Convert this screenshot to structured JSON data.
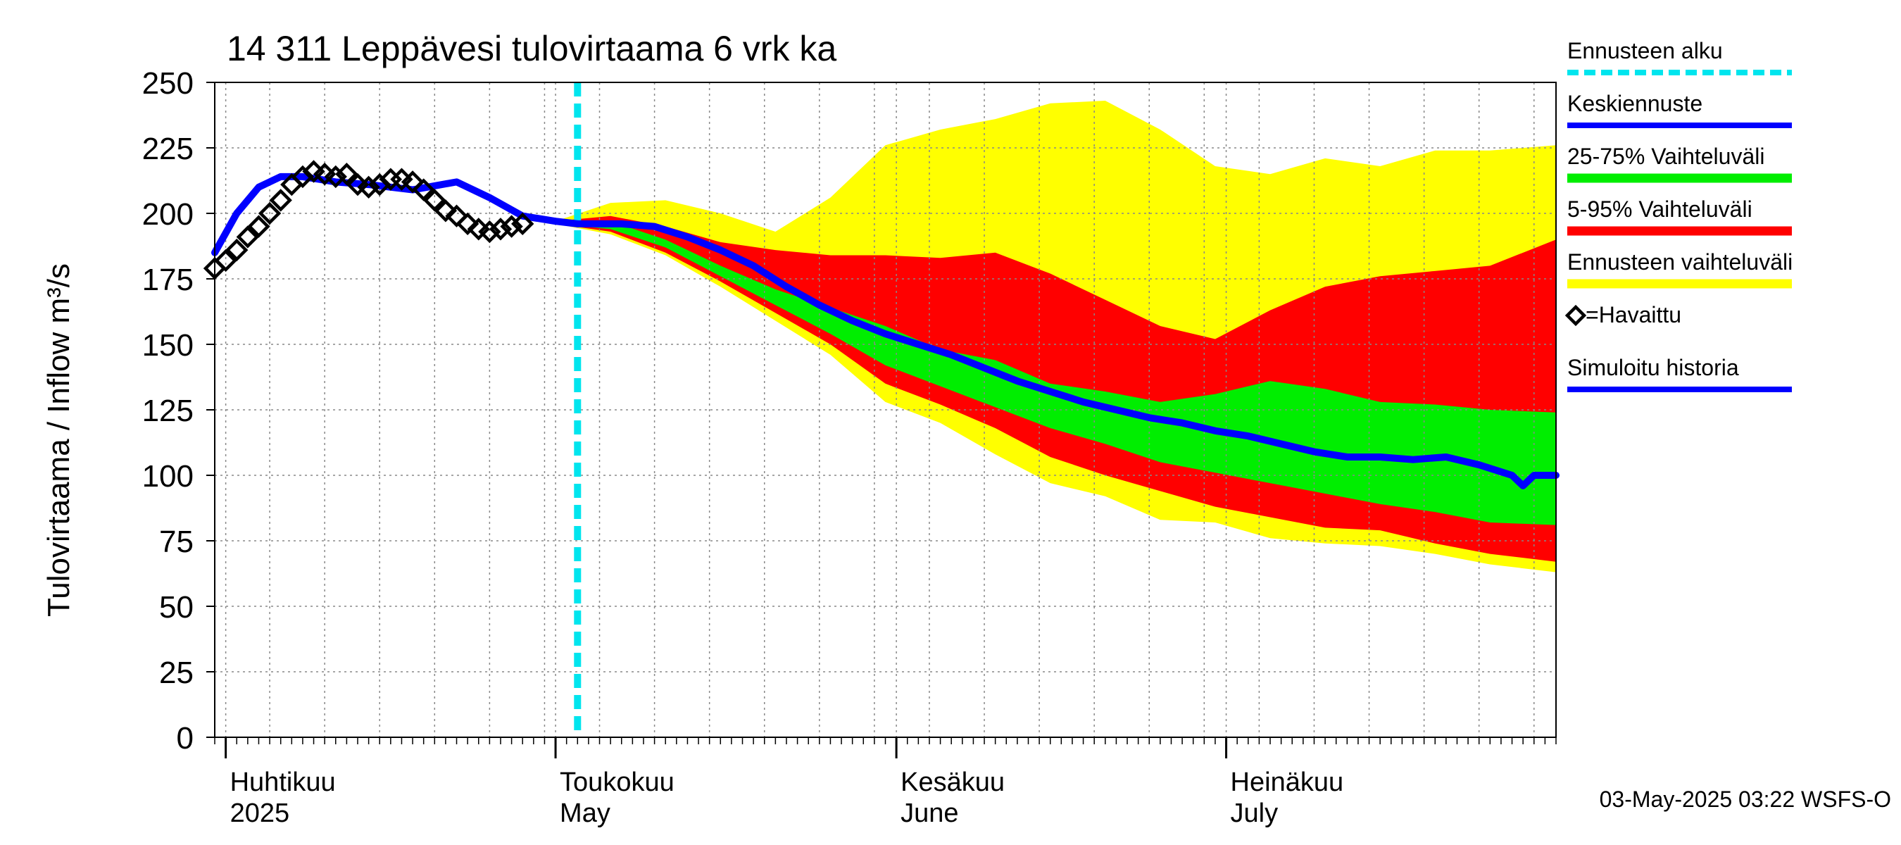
{
  "chart_data": {
    "type": "area",
    "title": "14 311 Leppävesi tulovirtaama 6 vrk ka",
    "ylabel": "Tulovirtaama / Inflow    m³/s",
    "ylim": [
      0,
      250
    ],
    "yticks": [
      0,
      25,
      50,
      75,
      100,
      125,
      150,
      175,
      200,
      225,
      250
    ],
    "x_range": [
      "2025-03-31",
      "2025-07-31"
    ],
    "grid": true,
    "legend_position": "right",
    "forecast_start": "2025-05-03",
    "month_labels": [
      {
        "date": "2025-04-01",
        "fi": "Huhtikuu",
        "en": "2025"
      },
      {
        "date": "2025-05-01",
        "fi": "Toukokuu",
        "en": "May"
      },
      {
        "date": "2025-06-01",
        "fi": "Kesäkuu",
        "en": "June"
      },
      {
        "date": "2025-07-01",
        "fi": "Heinäkuu",
        "en": "July"
      }
    ],
    "legend": [
      {
        "label": "Ennusteen alku",
        "color": "#00e5ee",
        "style": "dashed"
      },
      {
        "label": "Keskiennuste",
        "color": "#0000ff",
        "style": "line"
      },
      {
        "label": "25-75% Vaihteluväli",
        "color": "#00ee00",
        "style": "band"
      },
      {
        "label": "5-95% Vaihteluväli",
        "color": "#ff0000",
        "style": "band"
      },
      {
        "label": "Ennusteen vaihteluväli",
        "color": "#ffff00",
        "style": "band"
      },
      {
        "label": "=Havaittu",
        "color": "#000000",
        "style": "marker"
      },
      {
        "label": "Simuloitu historia",
        "color": "#0000ff",
        "style": "line"
      }
    ],
    "footer": "03-May-2025 03:22 WSFS-O",
    "band_x": [
      "2025-05-01",
      "2025-05-06",
      "2025-05-11",
      "2025-05-16",
      "2025-05-21",
      "2025-05-26",
      "2025-05-31",
      "2025-06-05",
      "2025-06-10",
      "2025-06-15",
      "2025-06-20",
      "2025-06-25",
      "2025-06-30",
      "2025-07-05",
      "2025-07-10",
      "2025-07-15",
      "2025-07-20",
      "2025-07-25",
      "2025-07-31"
    ],
    "bands": {
      "ens_max": [
        197,
        204,
        205,
        200,
        193,
        206,
        226,
        232,
        236,
        242,
        243,
        232,
        218,
        215,
        221,
        218,
        224,
        224,
        226
      ],
      "ens_min": [
        196,
        192,
        184,
        172,
        159,
        146,
        128,
        120,
        108,
        97,
        92,
        83,
        82,
        76,
        74,
        73,
        70,
        66,
        63
      ],
      "p95": [
        197,
        199,
        195,
        189,
        186,
        184,
        184,
        183,
        185,
        177,
        167,
        157,
        152,
        163,
        172,
        176,
        178,
        180,
        190
      ],
      "p05": [
        196,
        193,
        185,
        174,
        162,
        150,
        135,
        127,
        118,
        107,
        100,
        94,
        88,
        84,
        80,
        79,
        74,
        70,
        67
      ],
      "p75": [
        196,
        197,
        190,
        180,
        171,
        164,
        157,
        148,
        144,
        135,
        132,
        128,
        131,
        136,
        133,
        128,
        127,
        125,
        124
      ],
      "p25": [
        196,
        194,
        187,
        176,
        165,
        154,
        142,
        134,
        126,
        118,
        112,
        105,
        101,
        97,
        93,
        89,
        86,
        82,
        81
      ]
    },
    "simulated_history": {
      "x": [
        "2025-03-31",
        "2025-04-02",
        "2025-04-04",
        "2025-04-06",
        "2025-04-08",
        "2025-04-11",
        "2025-04-14",
        "2025-04-18",
        "2025-04-22",
        "2025-04-25",
        "2025-04-28",
        "2025-05-01",
        "2025-05-03"
      ],
      "y": [
        185,
        200,
        210,
        214,
        214,
        212,
        211,
        209,
        212,
        206,
        199,
        197,
        196
      ]
    },
    "median_forecast": {
      "x": [
        "2025-05-03",
        "2025-05-07",
        "2025-05-10",
        "2025-05-13",
        "2025-05-16",
        "2025-05-19",
        "2025-05-22",
        "2025-05-25",
        "2025-05-28",
        "2025-05-31",
        "2025-06-03",
        "2025-06-06",
        "2025-06-09",
        "2025-06-12",
        "2025-06-15",
        "2025-06-18",
        "2025-06-21",
        "2025-06-24",
        "2025-06-27",
        "2025-06-30",
        "2025-07-03",
        "2025-07-06",
        "2025-07-09",
        "2025-07-12",
        "2025-07-15",
        "2025-07-18",
        "2025-07-21",
        "2025-07-24",
        "2025-07-27",
        "2025-07-28",
        "2025-07-29",
        "2025-07-31"
      ],
      "y": [
        196,
        196,
        195,
        191,
        186,
        180,
        172,
        165,
        159,
        154,
        150,
        146,
        141,
        136,
        132,
        128,
        125,
        122,
        120,
        117,
        115,
        112,
        109,
        107,
        107,
        106,
        107,
        104,
        100,
        96,
        100,
        100
      ]
    },
    "observed": {
      "x": [
        "2025-03-31",
        "2025-04-01",
        "2025-04-02",
        "2025-04-03",
        "2025-04-04",
        "2025-04-05",
        "2025-04-06",
        "2025-04-07",
        "2025-04-08",
        "2025-04-09",
        "2025-04-10",
        "2025-04-11",
        "2025-04-12",
        "2025-04-13",
        "2025-04-14",
        "2025-04-15",
        "2025-04-16",
        "2025-04-17",
        "2025-04-18",
        "2025-04-19",
        "2025-04-20",
        "2025-04-21",
        "2025-04-22",
        "2025-04-23",
        "2025-04-24",
        "2025-04-25",
        "2025-04-26",
        "2025-04-27",
        "2025-04-28"
      ],
      "y": [
        179,
        182,
        186,
        191,
        195,
        200,
        205,
        211,
        214,
        216,
        215,
        214,
        215,
        211,
        210,
        211,
        213,
        213,
        212,
        209,
        205,
        201,
        199,
        196,
        194,
        193,
        194,
        195,
        196
      ]
    }
  }
}
